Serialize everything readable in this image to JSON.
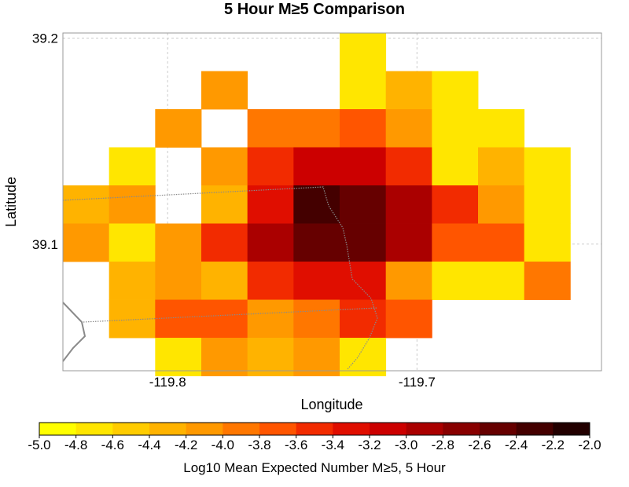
{
  "chart_data": {
    "type": "heatmap",
    "title": "5 Hour M≥5 Comparison",
    "xlabel": "Longitude",
    "ylabel": "Latitude",
    "xlim": [
      -119.842,
      -119.626
    ],
    "ylim": [
      39.0385,
      39.2025
    ],
    "x_ticks": [
      {
        "value": -119.8,
        "label": "-119.8"
      },
      {
        "value": -119.7,
        "label": "-119.7"
      }
    ],
    "y_ticks": [
      {
        "value": 39.2,
        "label": "39.2"
      },
      {
        "value": 39.1,
        "label": "39.1"
      }
    ],
    "cell_size_deg": 0.0185,
    "col_x0": -119.842,
    "row_y_top": 39.2025,
    "rows": [
      [
        null,
        null,
        null,
        null,
        null,
        null,
        -4.8,
        null,
        null,
        null,
        null,
        null
      ],
      [
        null,
        null,
        null,
        -4.2,
        null,
        null,
        -4.8,
        -4.4,
        -4.8,
        null,
        null,
        null
      ],
      [
        null,
        null,
        -4.2,
        null,
        -4.0,
        -4.0,
        -3.8,
        -4.2,
        -4.8,
        -4.8,
        null,
        null
      ],
      [
        null,
        -4.8,
        null,
        -4.2,
        -3.6,
        -3.2,
        -3.2,
        -3.6,
        -4.8,
        -4.4,
        -4.8,
        null
      ],
      [
        -4.4,
        -4.2,
        null,
        -4.4,
        -3.4,
        -2.4,
        -2.6,
        -3.0,
        -3.6,
        -4.2,
        -4.8,
        null
      ],
      [
        -4.2,
        -4.8,
        -4.2,
        -3.6,
        -3.0,
        -2.6,
        -2.6,
        -3.0,
        -3.8,
        -3.8,
        -4.8,
        null
      ],
      [
        null,
        -4.4,
        -4.2,
        -4.4,
        -3.6,
        -3.4,
        -3.4,
        -4.2,
        -4.8,
        -4.8,
        -4.0,
        null
      ],
      [
        null,
        -4.4,
        -3.8,
        -3.8,
        -4.2,
        -4.0,
        -3.6,
        -3.8,
        null,
        null,
        null,
        null
      ],
      [
        null,
        null,
        -4.8,
        -4.2,
        -4.4,
        -4.2,
        -4.8,
        null,
        null,
        null,
        null,
        null
      ]
    ],
    "colorbar": {
      "label": "Log10 Mean Expected Number M≥5, 5 Hour",
      "min": -5.0,
      "max": -2.0,
      "step": 0.2,
      "tick_labels": [
        "-5.0",
        "-4.8",
        "-4.6",
        "-4.4",
        "-4.2",
        "-4.0",
        "-3.8",
        "-3.6",
        "-3.4",
        "-3.2",
        "-3.0",
        "-2.8",
        "-2.6",
        "-2.4",
        "-2.2",
        "-2.0"
      ],
      "colors": [
        "#ffff00",
        "#ffe600",
        "#ffcc00",
        "#ffb300",
        "#ff9900",
        "#ff7700",
        "#ff5500",
        "#f22b00",
        "#e00e00",
        "#cc0000",
        "#aa0000",
        "#880000",
        "#660000",
        "#440000",
        "#220000"
      ]
    },
    "grid": true,
    "legend": "colorbar-bottom"
  },
  "palette": {
    "border_line": "#8a8a8a",
    "grid_line": "#cccccc",
    "frame": "#999999"
  }
}
